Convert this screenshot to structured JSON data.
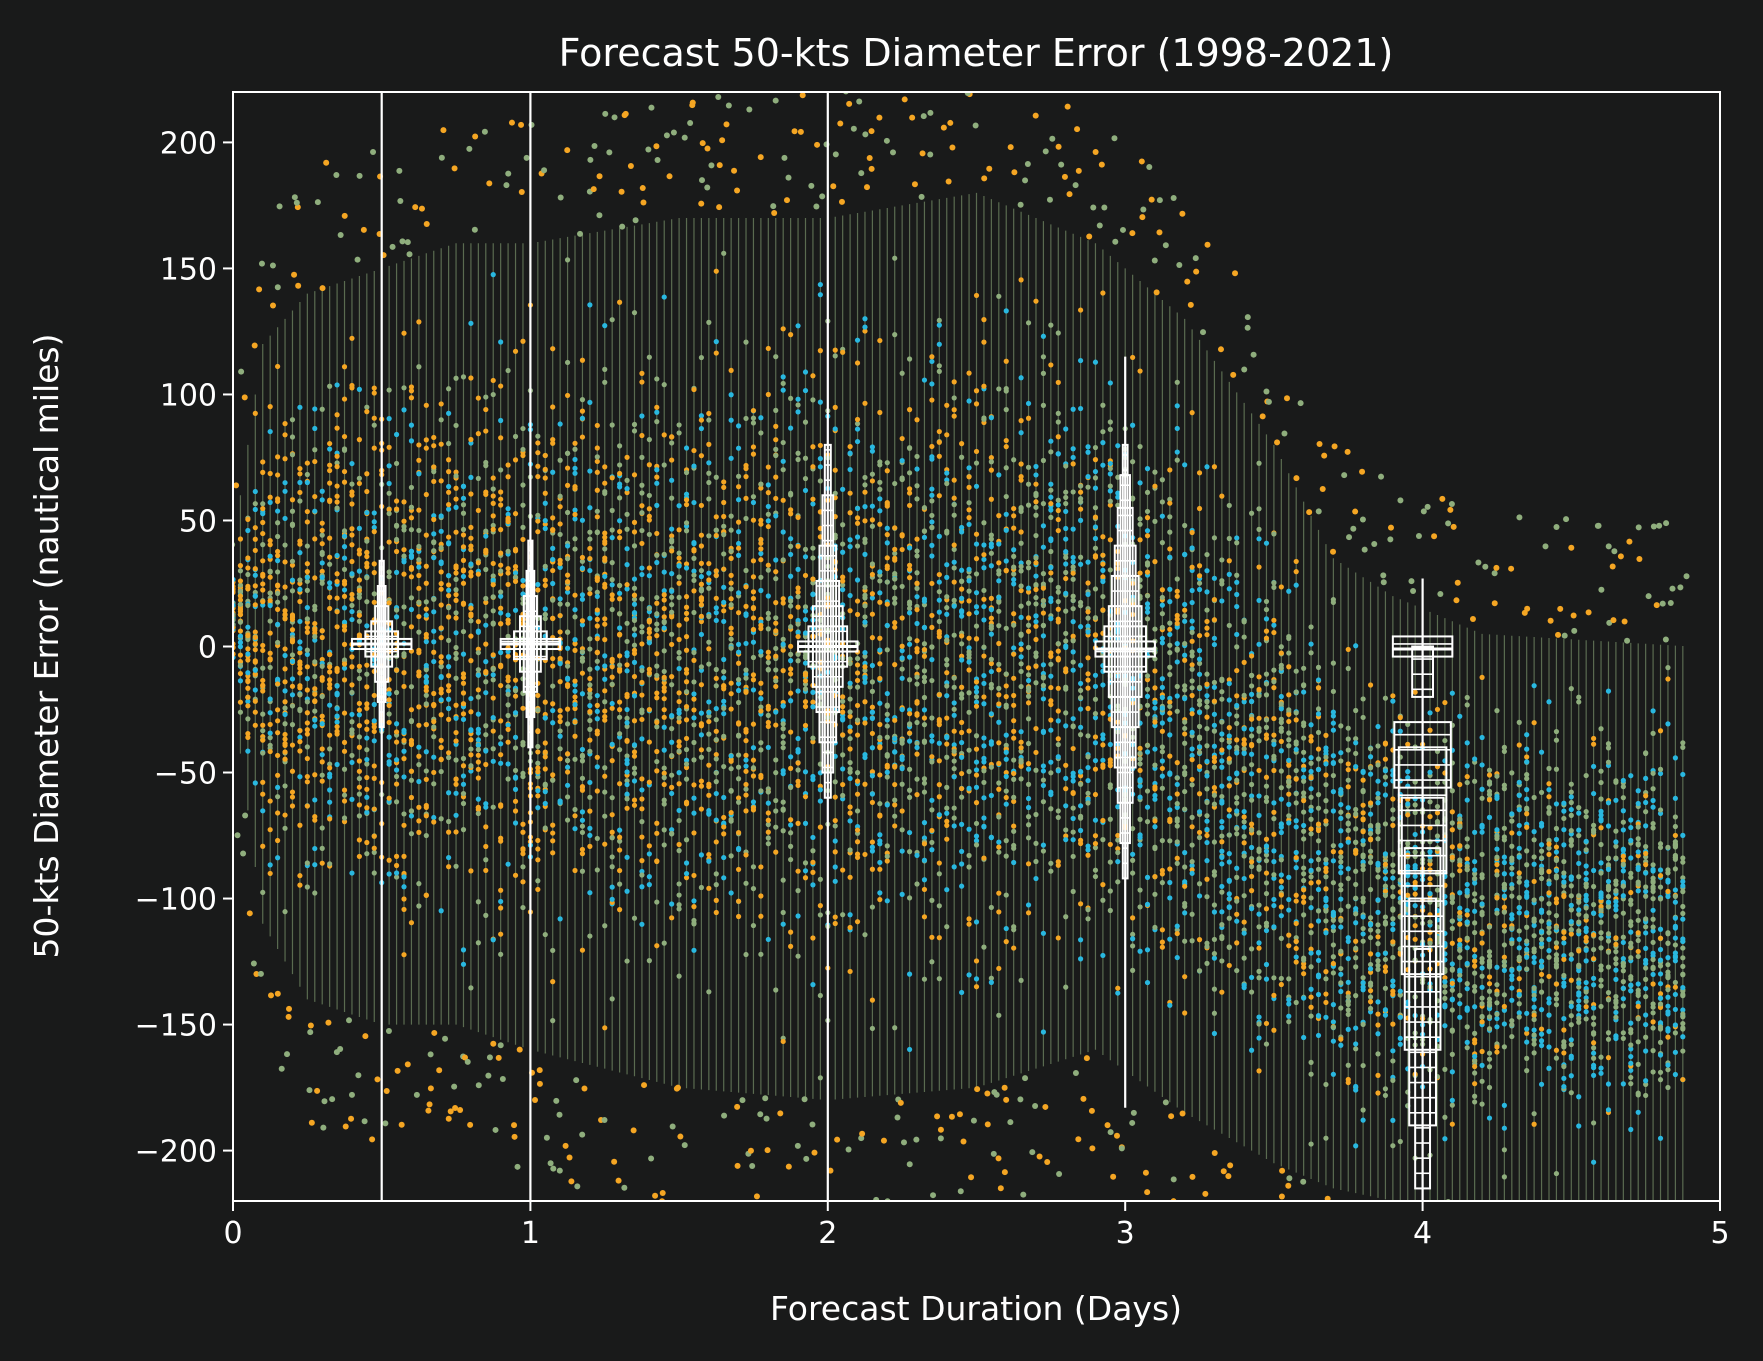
{
  "chart_data": {
    "type": "scatter",
    "title": "Forecast 50-kts Diameter Error (1998-2021)",
    "xlabel": "Forecast Duration (Days)",
    "ylabel": "50-kts Diameter Error (nautical miles)",
    "xlim": [
      0,
      5
    ],
    "ylim": [
      -220,
      220
    ],
    "x_ticks": [
      "0",
      "1",
      "2",
      "3",
      "4",
      "5"
    ],
    "x_tick_values": [
      0,
      1,
      2,
      3,
      4,
      5
    ],
    "y_ticks": [
      "200",
      "150",
      "100",
      "50",
      "0",
      "−50",
      "−100",
      "−150",
      "−200"
    ],
    "y_tick_values": [
      200,
      150,
      100,
      50,
      0,
      -50,
      -100,
      -150,
      -200
    ],
    "grid": false,
    "background_color": "#191a1a",
    "colors": {
      "orange": "#f5a623",
      "sage": "#8fae7d",
      "cyan": "#29b8e0",
      "box": "#ffffff",
      "axes": "#ffffff"
    },
    "scatter_envelope": [
      {
        "x": 0.0,
        "low": -20,
        "high": 40
      },
      {
        "x": 0.1,
        "low": -110,
        "high": 120
      },
      {
        "x": 0.25,
        "low": -140,
        "high": 140
      },
      {
        "x": 0.5,
        "low": -150,
        "high": 150
      },
      {
        "x": 0.75,
        "low": -150,
        "high": 160
      },
      {
        "x": 1.0,
        "low": -160,
        "high": 160
      },
      {
        "x": 1.5,
        "low": -175,
        "high": 170
      },
      {
        "x": 2.0,
        "low": -180,
        "high": 170
      },
      {
        "x": 2.5,
        "low": -175,
        "high": 180
      },
      {
        "x": 2.9,
        "low": -160,
        "high": 160
      },
      {
        "x": 3.2,
        "low": -185,
        "high": 130
      },
      {
        "x": 3.5,
        "low": -205,
        "high": 80
      },
      {
        "x": 3.7,
        "low": -215,
        "high": 35
      },
      {
        "x": 3.9,
        "low": -220,
        "high": 20
      },
      {
        "x": 4.2,
        "low": -220,
        "high": 5
      },
      {
        "x": 4.9,
        "low": -220,
        "high": 0
      }
    ],
    "series": [
      {
        "x": 0.5,
        "median": 1,
        "whisker_low": -220,
        "whisker_high": 220,
        "box_levels": [
          {
            "low": -1,
            "high": 3,
            "halfwidth": 0.1
          },
          {
            "low": -4,
            "high": 6,
            "halfwidth": 0.055
          },
          {
            "low": -8,
            "high": 10,
            "halfwidth": 0.035
          },
          {
            "low": -14,
            "high": 16,
            "halfwidth": 0.022
          },
          {
            "low": -22,
            "high": 24,
            "halfwidth": 0.013
          },
          {
            "low": -32,
            "high": 34,
            "halfwidth": 0.007
          }
        ]
      },
      {
        "x": 1.0,
        "median": 1,
        "whisker_low": -220,
        "whisker_high": 220,
        "box_levels": [
          {
            "low": -1,
            "high": 3,
            "halfwidth": 0.1
          },
          {
            "low": -5,
            "high": 6,
            "halfwidth": 0.055
          },
          {
            "low": -10,
            "high": 12,
            "halfwidth": 0.035
          },
          {
            "low": -18,
            "high": 20,
            "halfwidth": 0.022
          },
          {
            "low": -28,
            "high": 30,
            "halfwidth": 0.013
          },
          {
            "low": -40,
            "high": 42,
            "halfwidth": 0.007
          }
        ]
      },
      {
        "x": 2.0,
        "median": 0,
        "whisker_low": -220,
        "whisker_high": 220,
        "box_levels": [
          {
            "low": -2,
            "high": 2,
            "halfwidth": 0.1
          },
          {
            "low": -8,
            "high": 8,
            "halfwidth": 0.065
          },
          {
            "low": -16,
            "high": 16,
            "halfwidth": 0.05
          },
          {
            "low": -26,
            "high": 26,
            "halfwidth": 0.038
          },
          {
            "low": -38,
            "high": 40,
            "halfwidth": 0.028
          },
          {
            "low": -50,
            "high": 60,
            "halfwidth": 0.018
          },
          {
            "low": -60,
            "high": 80,
            "halfwidth": 0.01
          }
        ]
      },
      {
        "x": 3.0,
        "median": -1,
        "whisker_low": -183,
        "whisker_high": 115,
        "box_levels": [
          {
            "low": -4,
            "high": 2,
            "halfwidth": 0.1
          },
          {
            "low": -10,
            "high": 8,
            "halfwidth": 0.07
          },
          {
            "low": -20,
            "high": 16,
            "halfwidth": 0.055
          },
          {
            "low": -32,
            "high": 28,
            "halfwidth": 0.045
          },
          {
            "low": -48,
            "high": 40,
            "halfwidth": 0.035
          },
          {
            "low": -62,
            "high": 55,
            "halfwidth": 0.025
          },
          {
            "low": -78,
            "high": 68,
            "halfwidth": 0.016
          },
          {
            "low": -92,
            "high": 80,
            "halfwidth": 0.008
          }
        ]
      },
      {
        "x": 4.0,
        "median": -1,
        "whisker_low": -220,
        "whisker_high": 27,
        "box_levels": [
          {
            "low": -4,
            "high": 4,
            "halfwidth": 0.1
          },
          {
            "low": -20,
            "high": 0,
            "halfwidth": 0.035
          },
          {
            "low": -56,
            "high": -30,
            "halfwidth": 0.095
          },
          {
            "low": -90,
            "high": -40,
            "halfwidth": 0.08
          },
          {
            "low": -130,
            "high": -60,
            "halfwidth": 0.07
          },
          {
            "low": -160,
            "high": -80,
            "halfwidth": 0.06
          },
          {
            "low": -190,
            "high": -100,
            "halfwidth": 0.045
          },
          {
            "low": -215,
            "high": -120,
            "halfwidth": 0.025
          }
        ]
      }
    ]
  }
}
